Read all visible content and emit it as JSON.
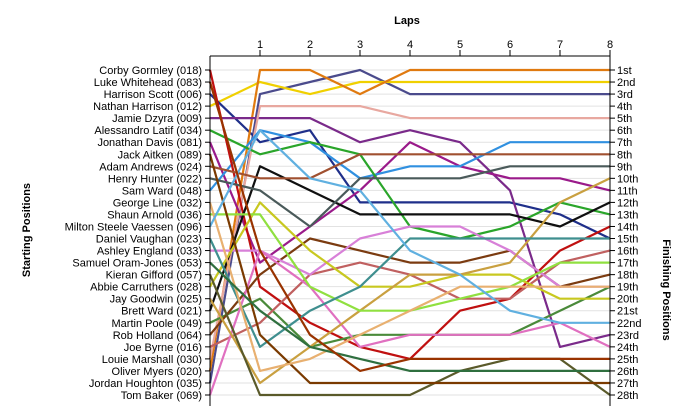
{
  "chart_data": {
    "type": "line",
    "title": "",
    "xlabel": "Laps",
    "ylabel": "Starting Positions",
    "ylabel_right": "Finishing Positions",
    "x": [
      0,
      1,
      2,
      3,
      4,
      5,
      6,
      7,
      8
    ],
    "x_tick_labels": [
      "1",
      "2",
      "3",
      "4",
      "5",
      "6",
      "7",
      "8"
    ],
    "y_range": [
      1,
      28
    ],
    "y_reversed": true,
    "grid": "horizontal",
    "starting_labels": [
      "Corby Gormley (018)",
      "Luke Whitehead (083)",
      "Harrison Scott (006)",
      "Nathan Harrison (012)",
      "Jamie Dzyra (009)",
      "Alessandro Latif (034)",
      "Jonathan Davis (081)",
      "Jack Aitken (089)",
      "Adam Andrews (024)",
      "Henry Hunter (022)",
      "Sam Ward (048)",
      "George Line (032)",
      "Shaun Arnold (036)",
      "Milton Steele Vaessen (096)",
      "Daniel Vaughan (023)",
      "Ashley England (033)",
      "Samuel Oram-Jones (053)",
      "Kieran Gifford (057)",
      "Abbie Carruthers (028)",
      "Jay Goodwin (025)",
      "Brett Ward (021)",
      "Martin Poole (049)",
      "Rob Holland (064)",
      "Joe Byrne (016)",
      "Louie Marshall (030)",
      "Oliver Myers (020)",
      "Jordan Houghton (035)",
      "Tom Baker (069)"
    ],
    "finishing_labels": [
      "1st",
      "2nd",
      "3rd",
      "4th",
      "5th",
      "6th",
      "7th",
      "8th",
      "9th",
      "10th",
      "11th",
      "12th",
      "13th",
      "14th",
      "15th",
      "16th",
      "17th",
      "18th",
      "19th",
      "20th",
      "21st",
      "22nd",
      "23rd",
      "24th",
      "25th",
      "26th",
      "27th",
      "28th"
    ],
    "series": [
      {
        "color": "#4b4b8c",
        "values": [
          27,
          3,
          2,
          1,
          3,
          3,
          3,
          3,
          3
        ]
      },
      {
        "color": "#f0d000",
        "values": [
          4,
          2,
          3,
          2,
          2,
          2,
          2,
          2,
          2
        ]
      },
      {
        "color": "#1f2f8a",
        "values": [
          3,
          7,
          6,
          12,
          12,
          12,
          12,
          13,
          15
        ]
      },
      {
        "color": "#e07a10",
        "values": [
          26,
          1,
          1,
          3,
          1,
          1,
          1,
          1,
          1
        ]
      },
      {
        "color": "#7a2a8a",
        "values": [
          5,
          5,
          5,
          7,
          6,
          7,
          11,
          24,
          23
        ]
      },
      {
        "color": "#e8a8a0",
        "values": [
          25,
          4,
          4,
          4,
          5,
          5,
          5,
          5,
          5
        ]
      },
      {
        "color": "#9a1a8a",
        "values": [
          7,
          17,
          14,
          11,
          7,
          9,
          10,
          10,
          11
        ]
      },
      {
        "color": "#3090e0",
        "values": [
          11,
          6,
          7,
          10,
          9,
          9,
          7,
          7,
          7
        ]
      },
      {
        "color": "#2aa52a",
        "values": [
          6,
          8,
          7,
          8,
          14,
          15,
          14,
          12,
          13
        ]
      },
      {
        "color": "#c01010",
        "values": [
          1,
          19,
          22,
          24,
          25,
          21,
          20,
          16,
          14
        ]
      },
      {
        "color": "#4a8a3a",
        "values": [
          22,
          20,
          24,
          23,
          23,
          23,
          23,
          21,
          19
        ]
      },
      {
        "color": "#101010",
        "values": [
          21,
          9,
          11,
          13,
          13,
          13,
          13,
          14,
          12
        ]
      },
      {
        "color": "#c06060",
        "values": [
          24,
          22,
          18,
          17,
          18,
          20,
          20,
          17,
          16
        ]
      },
      {
        "color": "#7b3b10",
        "values": [
          23,
          18,
          15,
          16,
          17,
          17,
          16,
          19,
          18
        ]
      },
      {
        "color": "#d880d8",
        "values": [
          16,
          16,
          18,
          15,
          14,
          14,
          16,
          19,
          19
        ]
      },
      {
        "color": "#4a5a5a",
        "values": [
          10,
          11,
          14,
          10,
          10,
          10,
          9,
          9,
          9
        ]
      },
      {
        "color": "#e070c0",
        "values": [
          28,
          16,
          19,
          24,
          23,
          23,
          23,
          22,
          24
        ]
      },
      {
        "color": "#c8c820",
        "values": [
          19,
          12,
          16,
          19,
          19,
          18,
          18,
          20,
          20
        ]
      },
      {
        "color": "#a05030",
        "values": [
          9,
          10,
          10,
          8,
          8,
          8,
          8,
          8,
          8
        ]
      },
      {
        "color": "#c9a040",
        "values": [
          20,
          27,
          24,
          21,
          18,
          18,
          17,
          12,
          10
        ]
      },
      {
        "color": "#5a5a2a",
        "values": [
          18,
          28,
          28,
          28,
          28,
          26,
          25,
          25,
          28
        ]
      },
      {
        "color": "#90e040",
        "values": [
          13,
          13,
          19,
          21,
          21,
          20,
          19,
          17,
          17
        ]
      },
      {
        "color": "#3f8f8f",
        "values": [
          15,
          24,
          21,
          19,
          15,
          15,
          15,
          15,
          15
        ]
      },
      {
        "color": "#7a3a00",
        "values": [
          8,
          23,
          27,
          27,
          27,
          27,
          27,
          27,
          27
        ]
      },
      {
        "color": "#e8b070",
        "values": [
          12,
          26,
          25,
          23,
          21,
          19,
          19,
          19,
          19
        ]
      },
      {
        "color": "#60b0e0",
        "values": [
          14,
          6,
          10,
          11,
          16,
          18,
          21,
          22,
          22
        ]
      },
      {
        "color": "#2f6f3f",
        "values": [
          17,
          21,
          24,
          25,
          26,
          26,
          26,
          26,
          26
        ]
      },
      {
        "color": "#993300",
        "values": [
          2,
          16,
          23,
          26,
          25,
          25,
          25,
          25,
          25
        ]
      }
    ]
  }
}
